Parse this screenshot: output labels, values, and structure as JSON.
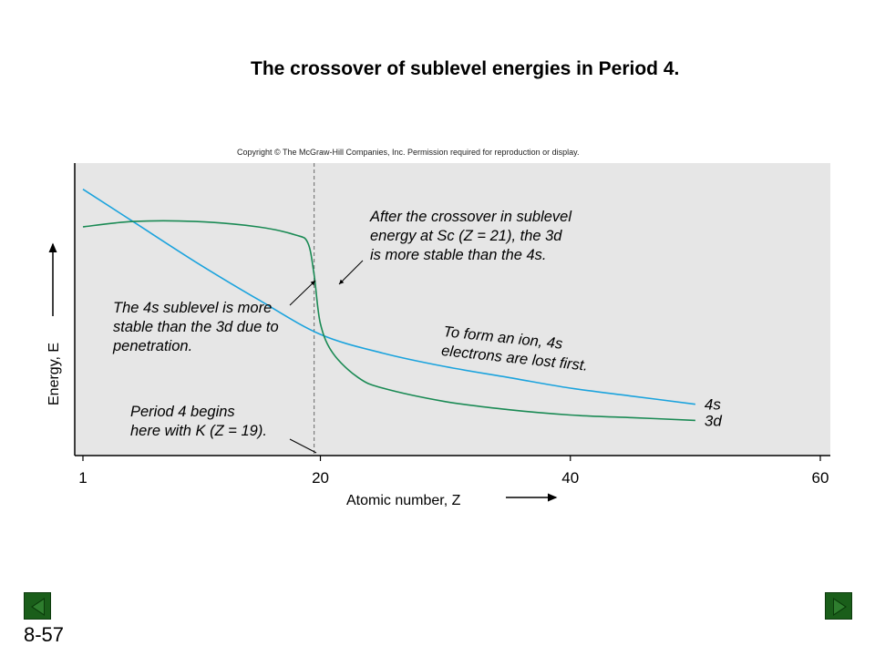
{
  "slide": {
    "title": "The crossover of sublevel energies in Period 4.",
    "copyright": "Copyright © The McGraw-Hill Companies, Inc. Permission required for reproduction or display.",
    "slide_number": "8-57"
  },
  "colors": {
    "panel": "#e6e6e6",
    "s4": "#1ba3dd",
    "d3": "#1a8a54",
    "nav_button": "#1a5e1a"
  },
  "chart_data": {
    "type": "line",
    "xlabel": "Atomic number, Z",
    "ylabel": "Energy, E",
    "x_ticks": [
      "1",
      "20",
      "40",
      "60"
    ],
    "xlim": [
      1,
      60
    ],
    "ylim": [
      0,
      1
    ],
    "grid": false,
    "series": [
      {
        "name": "4s",
        "color": "#1ba3dd",
        "x": [
          1,
          5,
          10,
          15,
          20,
          25,
          30,
          35,
          40,
          45,
          50
        ],
        "y": [
          0.94,
          0.82,
          0.67,
          0.53,
          0.4,
          0.33,
          0.28,
          0.24,
          0.2,
          0.17,
          0.14
        ]
      },
      {
        "name": "3d",
        "color": "#1a8a54",
        "x": [
          1,
          5,
          10,
          15,
          18,
          19,
          19.5,
          20,
          21,
          23,
          25,
          30,
          35,
          40,
          45,
          50
        ],
        "y": [
          0.8,
          0.82,
          0.82,
          0.8,
          0.77,
          0.74,
          0.62,
          0.44,
          0.33,
          0.24,
          0.2,
          0.15,
          0.12,
          0.1,
          0.09,
          0.08
        ]
      }
    ],
    "reference_line": {
      "x": 19.5
    },
    "annotations": [
      {
        "lines": [
          "After the crossover in sublevel",
          "energy at Sc (Z = 21), the 3d",
          "is more stable than the 4s."
        ]
      },
      {
        "lines": [
          "The 4s sublevel is more",
          "stable than the 3d due to",
          "penetration."
        ]
      },
      {
        "lines": [
          "To form an ion, 4s",
          "electrons are lost first."
        ]
      },
      {
        "lines": [
          "Period 4 begins",
          "here with K (Z = 19)."
        ]
      }
    ]
  }
}
